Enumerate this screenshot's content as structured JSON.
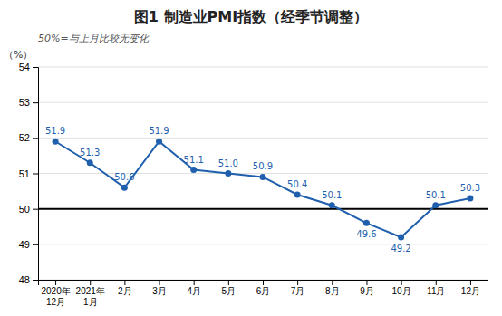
{
  "chart_data": {
    "type": "line",
    "title": "图1  制造业PMI指数（经季节调整）",
    "subtitle": "50%=与上月比较无变化",
    "ylabel": "（%）",
    "categories": [
      "2020年\n12月",
      "2021年\n1月",
      "2月",
      "3月",
      "4月",
      "5月",
      "6月",
      "7月",
      "8月",
      "9月",
      "10月",
      "11月",
      "12月"
    ],
    "values": [
      51.9,
      51.3,
      50.6,
      51.9,
      51.1,
      51.0,
      50.9,
      50.4,
      50.1,
      49.6,
      49.2,
      50.1,
      50.3
    ],
    "value_labels": [
      "51.9",
      "51.3",
      "50.6",
      "51.9",
      "51.1",
      "51.0",
      "50.9",
      "50.4",
      "50.1",
      "49.6",
      "49.2",
      "50.1",
      "50.3"
    ],
    "color": "#1F5FAD",
    "marker": "circle",
    "ylim": [
      48,
      54
    ],
    "yticks": [
      48,
      49,
      50,
      51,
      52,
      53,
      54
    ],
    "reference_line": 50,
    "grid": true,
    "data_labels": true
  }
}
